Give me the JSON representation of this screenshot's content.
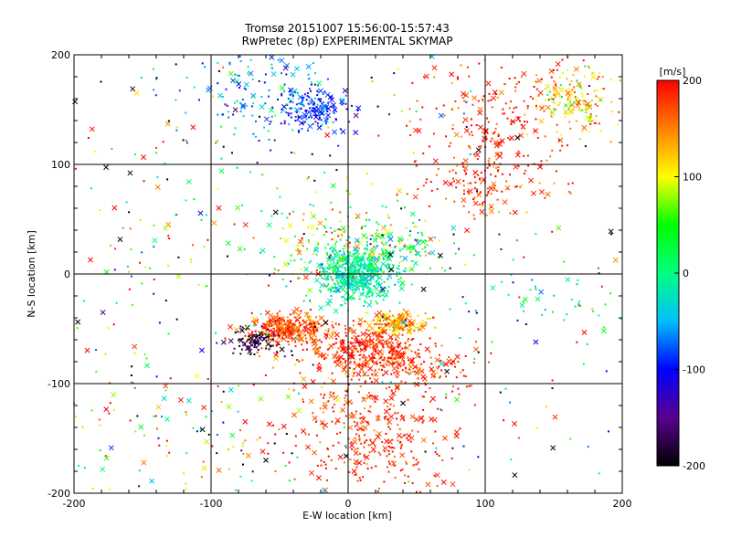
{
  "chart_data": {
    "type": "scatter",
    "title": "Tromsø 20151007 15:56:00-15:57:43",
    "subtitle": "RwPretec (8p) EXPERIMENTAL SKYMAP",
    "xlabel": "E-W location [km]",
    "ylabel": "N-S location [km]",
    "xlim": [
      -200,
      200
    ],
    "ylim": [
      -200,
      200
    ],
    "xticks": [
      -200,
      -100,
      0,
      100,
      200
    ],
    "yticks": [
      -200,
      -100,
      0,
      100,
      200
    ],
    "xtick_labels": [
      "-200",
      "-100",
      "0",
      "100",
      "200"
    ],
    "ytick_labels": [
      "-200",
      "-100",
      "0",
      "100",
      "200"
    ],
    "grid": true,
    "markers": [
      "dot",
      "cross"
    ],
    "colorbar": {
      "label": "[m/s]",
      "min": -200,
      "max": 200,
      "ticks": [
        -200,
        -100,
        0,
        100,
        200
      ],
      "tick_labels": [
        "-200",
        "-100",
        "0",
        "100",
        "200"
      ],
      "stops": [
        "#000000",
        "#5a0090",
        "#0000ff",
        "#00bfff",
        "#00ff80",
        "#00ff00",
        "#ffff00",
        "#ff8000",
        "#ff0000"
      ]
    },
    "clusters": [
      {
        "x": 5,
        "y": 0,
        "sx": 14,
        "sy": 12,
        "v": -10,
        "vs": 25,
        "n": 520
      },
      {
        "x": -45,
        "y": -50,
        "sx": 15,
        "sy": 7,
        "v": 175,
        "vs": 25,
        "n": 320
      },
      {
        "x": 15,
        "y": -70,
        "sx": 22,
        "sy": 12,
        "v": 185,
        "vs": 20,
        "n": 380
      },
      {
        "x": 35,
        "y": -45,
        "sx": 12,
        "sy": 5,
        "v": 135,
        "vs": 30,
        "n": 150
      },
      {
        "x": -65,
        "y": -62,
        "sx": 10,
        "sy": 6,
        "v": -180,
        "vs": 25,
        "n": 90
      },
      {
        "x": 20,
        "y": -145,
        "sx": 28,
        "sy": 30,
        "v": 180,
        "vs": 20,
        "n": 340
      },
      {
        "x": -25,
        "y": 150,
        "sx": 14,
        "sy": 10,
        "v": -90,
        "vs": 25,
        "n": 170
      },
      {
        "x": -70,
        "y": 165,
        "sx": 30,
        "sy": 25,
        "v": -60,
        "vs": 45,
        "n": 140
      },
      {
        "x": 110,
        "y": 135,
        "sx": 30,
        "sy": 40,
        "v": 180,
        "vs": 25,
        "n": 270
      },
      {
        "x": 165,
        "y": 160,
        "sx": 15,
        "sy": 15,
        "v": 120,
        "vs": 40,
        "n": 150
      },
      {
        "x": 35,
        "y": 25,
        "sx": 20,
        "sy": 10,
        "v": 30,
        "vs": 60,
        "n": 130
      },
      {
        "x": -10,
        "y": 25,
        "sx": 30,
        "sy": 25,
        "v": 80,
        "vs": 70,
        "n": 180
      },
      {
        "x": 90,
        "y": 80,
        "sx": 15,
        "sy": 15,
        "v": 180,
        "vs": 20,
        "n": 90
      },
      {
        "x": 60,
        "y": -85,
        "sx": 20,
        "sy": 10,
        "v": 180,
        "vs": 30,
        "n": 90
      },
      {
        "x": 150,
        "y": -20,
        "sx": 30,
        "sy": 15,
        "v": -20,
        "vs": 40,
        "n": 40
      },
      {
        "x": -120,
        "y": -140,
        "sx": 50,
        "sy": 40,
        "v": 100,
        "vs": 110,
        "n": 110
      },
      {
        "x": -140,
        "y": 50,
        "sx": 40,
        "sy": 60,
        "v": 100,
        "vs": 110,
        "n": 80
      },
      {
        "x": 0,
        "y": 0,
        "sx": 170,
        "sy": 170,
        "v": 0,
        "vs": 220,
        "n": 460
      }
    ]
  }
}
